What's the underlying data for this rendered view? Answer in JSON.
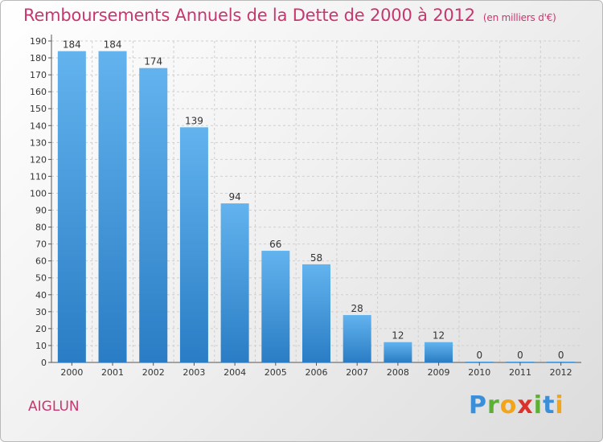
{
  "title": "Remboursements Annuels de la Dette de 2000 à 2012",
  "unit_label": "(en milliers d'€)",
  "commune": "AIGLUN",
  "logo": {
    "p": "P",
    "r": "r",
    "o": "o",
    "x": "x",
    "i1": "i",
    "t": "t",
    "i2": "i"
  },
  "colors": {
    "bar_top": "#62b3ee",
    "bar_bottom": "#2a7dc4",
    "title": "#c8366f",
    "grid": "#cfcfcf"
  },
  "chart_data": {
    "type": "bar",
    "title": "Remboursements Annuels de la Dette de 2000 à 2012",
    "xlabel": "",
    "ylabel": "",
    "categories": [
      "2000",
      "2001",
      "2002",
      "2003",
      "2004",
      "2005",
      "2006",
      "2007",
      "2008",
      "2009",
      "2010",
      "2011",
      "2012"
    ],
    "values": [
      184,
      184,
      174,
      139,
      94,
      66,
      58,
      28,
      12,
      12,
      0,
      0,
      0
    ],
    "ylim": [
      0,
      190
    ],
    "ytick_step": 10,
    "grid": true,
    "legend": "none"
  }
}
